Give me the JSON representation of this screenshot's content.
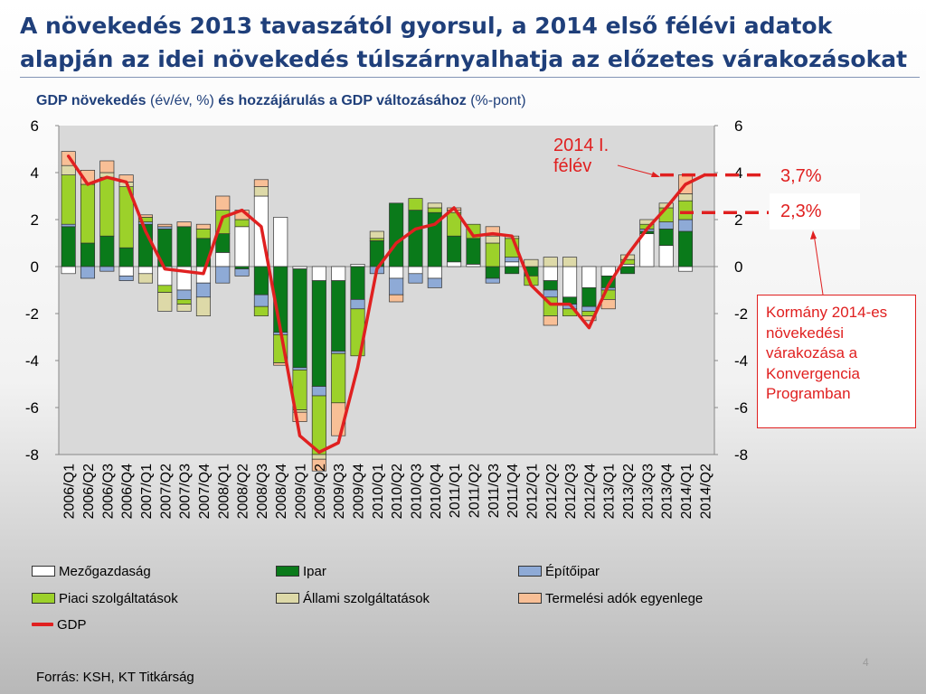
{
  "slide": {
    "title": "A növekedés 2013 tavaszától gyorsul, a 2014 első félévi adatok alapján az idei növekedés túlszárnyalhatja az előzetes várakozásokat",
    "subtitle_bold1": "GDP növekedés",
    "subtitle_norm1": " (év/év, %) ",
    "subtitle_bold2": "és hozzájárulás a GDP változásához",
    "subtitle_norm2": " (%-pont)",
    "source": "Forrás: KSH, KT Titkárság",
    "page_number": "4"
  },
  "annotations": {
    "callout_2014h1": "2014 I. félév",
    "value_37": "3,7%",
    "value_23": "2,3%",
    "gov_expectation": "Kormány 2014-es növekedési várakozása a Konvergencia Programban"
  },
  "colors": {
    "mezogazdasag": "#ffffff",
    "ipar": "#0a7a1a",
    "epitoipar": "#8eaad6",
    "piaci": "#9cd12a",
    "allami": "#ddd9a8",
    "termelesi": "#f8bf96",
    "gdp": "#e02020",
    "annotation": "#e02020"
  },
  "chart_data": {
    "type": "bar",
    "stacked": true,
    "categories": [
      "2006/Q1",
      "2006/Q2",
      "2006/Q3",
      "2006/Q4",
      "2007/Q1",
      "2007/Q2",
      "2007/Q3",
      "2007/Q4",
      "2008/Q1",
      "2008/Q2",
      "2008/Q3",
      "2008/Q4",
      "2009/Q1",
      "2009/Q2",
      "2009/Q3",
      "2009/Q4",
      "2010/Q1",
      "2010/Q2",
      "2010/Q3",
      "2010/Q4",
      "2011/Q1",
      "2011/Q2",
      "2011/Q3",
      "2011/Q4",
      "2012/Q1",
      "2012/Q2",
      "2012/Q3",
      "2012/Q4",
      "2013/Q1",
      "2013/Q2",
      "2013/Q3",
      "2013/Q4",
      "2014/Q1",
      "2014/Q2"
    ],
    "ylim": [
      -8,
      6
    ],
    "yticks": [
      6,
      4,
      2,
      0,
      -2,
      -4,
      -6,
      -8
    ],
    "y_tick_labels": [
      "6",
      "4",
      "2",
      "0",
      "-2",
      "-4",
      "-6",
      "-8"
    ],
    "grid": false,
    "legend_position": "bottom",
    "series": [
      {
        "name": "Mezőgazdaság",
        "key": "mezogazdasag",
        "values": [
          -0.3,
          0.0,
          0.0,
          -0.4,
          -0.3,
          -0.8,
          -1.0,
          -0.7,
          0.6,
          1.7,
          3.0,
          2.1,
          -0.1,
          -0.6,
          -0.6,
          0.1,
          0.0,
          -0.5,
          -0.3,
          -0.5,
          0.2,
          0.1,
          0.0,
          0.2,
          0.0,
          -0.6,
          -1.3,
          -0.9,
          -0.4,
          0.1,
          1.4,
          0.9,
          -0.2,
          0.0
        ]
      },
      {
        "name": "Ipar",
        "key": "ipar",
        "values": [
          1.7,
          1.0,
          1.3,
          0.8,
          1.8,
          1.6,
          1.7,
          1.2,
          0.8,
          -0.1,
          -1.2,
          -2.8,
          -4.2,
          -4.5,
          -3.0,
          -1.4,
          1.1,
          2.7,
          2.4,
          2.3,
          1.1,
          1.1,
          -0.5,
          -0.3,
          -0.4,
          -0.4,
          -0.3,
          -0.8,
          -0.5,
          -0.3,
          0.1,
          0.7,
          1.5,
          0.0
        ]
      },
      {
        "name": "Építőipar",
        "key": "epitoipar",
        "values": [
          0.1,
          -0.5,
          -0.2,
          -0.2,
          0.1,
          0.1,
          -0.4,
          -0.6,
          -0.7,
          -0.3,
          -0.5,
          -0.1,
          -0.1,
          -0.4,
          -0.1,
          -0.4,
          -0.3,
          -0.7,
          -0.4,
          -0.4,
          0.0,
          0.0,
          -0.2,
          0.2,
          0.0,
          -0.3,
          -0.2,
          -0.2,
          -0.1,
          0.0,
          0.1,
          0.3,
          0.5,
          0.0
        ]
      },
      {
        "name": "Piaci szolgáltatások",
        "key": "piaci",
        "values": [
          2.1,
          2.5,
          2.5,
          2.6,
          0.2,
          -0.3,
          -0.2,
          0.4,
          1.0,
          0.3,
          -0.4,
          -1.2,
          -1.7,
          -2.5,
          -2.1,
          -2.0,
          0.1,
          0.0,
          0.5,
          0.2,
          1.0,
          0.6,
          1.0,
          0.8,
          -0.4,
          -0.8,
          -0.3,
          -0.2,
          -0.4,
          0.2,
          0.2,
          0.6,
          0.8,
          0.0
        ]
      },
      {
        "name": "Állami szolgáltatások",
        "key": "allami",
        "values": [
          0.4,
          0.0,
          0.2,
          0.2,
          -0.4,
          -0.8,
          -0.3,
          -0.8,
          0.0,
          0.0,
          0.4,
          0.0,
          -0.1,
          -0.2,
          0.0,
          0.0,
          0.3,
          0.0,
          0.0,
          0.2,
          0.1,
          0.0,
          0.3,
          0.1,
          0.3,
          0.4,
          0.4,
          0.0,
          0.0,
          0.2,
          0.2,
          0.2,
          0.3,
          0.0
        ]
      },
      {
        "name": "Termelési adók egyenlege",
        "key": "termelesi",
        "values": [
          0.6,
          0.6,
          0.5,
          0.3,
          0.1,
          0.1,
          0.2,
          0.2,
          0.6,
          0.4,
          0.3,
          -0.1,
          -0.4,
          -0.5,
          -1.4,
          0.0,
          0.0,
          -0.3,
          0.0,
          0.0,
          0.1,
          0.0,
          0.4,
          0.0,
          0.0,
          -0.4,
          0.0,
          -0.2,
          -0.4,
          0.0,
          0.0,
          0.0,
          0.8,
          0.0
        ]
      }
    ],
    "line": {
      "name": "GDP",
      "values": [
        4.7,
        3.5,
        3.8,
        3.6,
        1.5,
        -0.1,
        -0.2,
        -0.3,
        2.1,
        2.4,
        1.7,
        -2.7,
        -7.2,
        -7.9,
        -7.5,
        -4.3,
        -0.1,
        1.0,
        1.6,
        1.8,
        2.5,
        1.3,
        1.4,
        1.3,
        -0.8,
        -1.6,
        -1.6,
        -2.6,
        -0.8,
        0.5,
        1.6,
        2.5,
        3.5,
        3.9
      ]
    },
    "secondary_y_tick_labels": [
      "6",
      "4",
      "2",
      "0",
      "-2",
      "-4",
      "-6",
      "-8"
    ]
  }
}
